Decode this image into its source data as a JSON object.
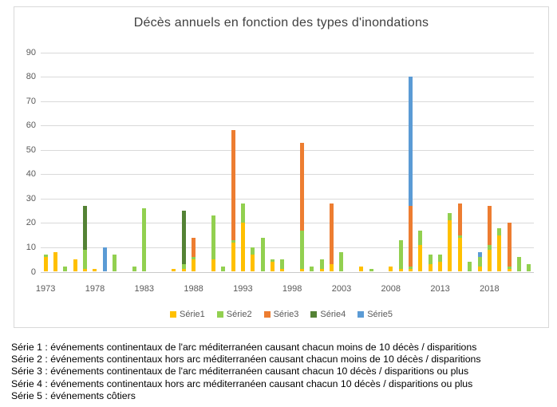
{
  "chart_data": {
    "type": "bar",
    "stacked": true,
    "title": "Décès annuels en fonction des types d'inondations",
    "xlabel": "",
    "ylabel": "",
    "ylim": [
      0,
      90
    ],
    "ytick_step": 10,
    "grid": true,
    "legend_position": "bottom",
    "x_start_year": 1973,
    "x": [
      1973,
      1974,
      1975,
      1976,
      1977,
      1978,
      1979,
      1980,
      1981,
      1982,
      1983,
      1984,
      1985,
      1986,
      1987,
      1988,
      1989,
      1990,
      1991,
      1992,
      1993,
      1994,
      1995,
      1996,
      1997,
      1998,
      1999,
      2000,
      2001,
      2002,
      2003,
      2004,
      2005,
      2006,
      2007,
      2008,
      2009,
      2010,
      2011,
      2012,
      2013,
      2014,
      2015,
      2016,
      2017,
      2018,
      2019,
      2020,
      2021,
      2022
    ],
    "xticks": [
      1973,
      1978,
      1983,
      1988,
      1993,
      1998,
      2003,
      2008,
      2013,
      2018
    ],
    "series": [
      {
        "name": "Série1",
        "color": "#FFC000",
        "values": [
          6,
          8,
          0,
          5,
          1,
          1,
          0,
          0,
          0,
          0,
          0,
          0,
          0,
          1,
          1,
          5,
          0,
          5,
          0,
          12,
          20,
          7,
          0,
          4,
          1,
          0,
          1,
          0,
          1,
          3,
          0,
          0,
          2,
          0,
          0,
          2,
          1,
          1,
          11,
          3,
          4,
          21,
          14,
          0,
          2,
          9,
          15,
          1,
          0,
          0
        ]
      },
      {
        "name": "Série2",
        "color": "#92D050",
        "values": [
          1,
          0,
          2,
          0,
          8,
          0,
          0,
          7,
          0,
          2,
          26,
          0,
          0,
          0,
          2,
          1,
          0,
          18,
          2,
          1,
          8,
          3,
          14,
          1,
          4,
          0,
          16,
          2,
          4,
          0,
          8,
          0,
          0,
          1,
          0,
          0,
          12,
          1,
          6,
          4,
          3,
          3,
          1,
          4,
          4,
          2,
          3,
          1,
          6,
          3
        ]
      },
      {
        "name": "Série3",
        "color": "#ED7D31",
        "values": [
          0,
          0,
          0,
          0,
          0,
          0,
          0,
          0,
          0,
          0,
          0,
          0,
          0,
          0,
          0,
          8,
          0,
          0,
          0,
          45,
          0,
          0,
          0,
          0,
          0,
          0,
          36,
          0,
          0,
          25,
          0,
          0,
          0,
          0,
          0,
          0,
          0,
          25,
          0,
          0,
          0,
          0,
          13,
          0,
          0,
          16,
          0,
          18,
          0,
          0
        ]
      },
      {
        "name": "Série4",
        "color": "#548235",
        "values": [
          0,
          0,
          0,
          0,
          18,
          0,
          0,
          0,
          0,
          0,
          0,
          0,
          0,
          0,
          22,
          0,
          0,
          0,
          0,
          0,
          0,
          0,
          0,
          0,
          0,
          0,
          0,
          0,
          0,
          0,
          0,
          0,
          0,
          0,
          0,
          0,
          0,
          0,
          0,
          0,
          0,
          0,
          0,
          0,
          0,
          0,
          0,
          0,
          0,
          0
        ]
      },
      {
        "name": "Série5",
        "color": "#5B9BD5",
        "values": [
          0,
          0,
          0,
          0,
          0,
          0,
          10,
          0,
          0,
          0,
          0,
          0,
          0,
          0,
          0,
          0,
          0,
          0,
          0,
          0,
          0,
          0,
          0,
          0,
          0,
          0,
          0,
          0,
          0,
          0,
          0,
          0,
          0,
          0,
          0,
          0,
          0,
          53,
          0,
          0,
          0,
          0,
          0,
          0,
          2,
          0,
          0,
          0,
          0,
          0
        ]
      }
    ]
  },
  "colors": {
    "title_text": "#404040",
    "axis_text": "#595959",
    "gridline": "#D9D9D9",
    "chart_border": "#D9D9D9",
    "background": "#ffffff",
    "note_text": "#000000"
  },
  "footnotes": [
    "Série 1 : événements continentaux de l'arc méditerranéen causant chacun moins de 10 décès / disparitions",
    "Série 2 : événements continentaux hors arc méditerranéen causant chacun moins de 10 décès / disparitions",
    "Série 3 : événements continentaux de l'arc méditerranéen causant chacun 10 décès / disparitions ou plus",
    "Série 4 : événements continentaux hors arc méditerranéen causant chacun 10 décès / disparitions ou plus",
    "Série 5 : événements côtiers"
  ]
}
